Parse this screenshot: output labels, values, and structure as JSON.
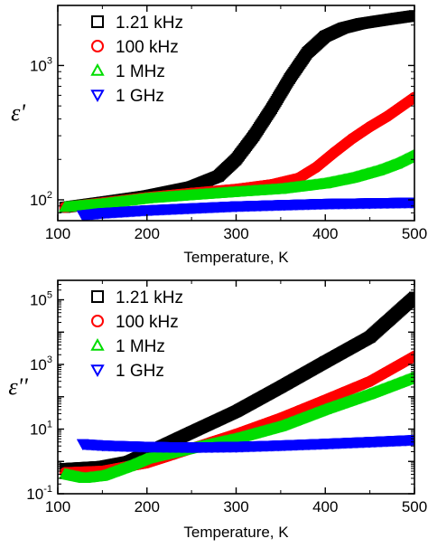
{
  "chart_data": [
    {
      "type": "scatter",
      "xlabel": "Temperature, K",
      "ylabel": "ε'",
      "xlim": [
        100,
        500
      ],
      "ylim": [
        70,
        2800
      ],
      "yscale": "log",
      "x_ticks": [
        100,
        200,
        300,
        400,
        500
      ],
      "y_ticks": [
        {
          "value": 100,
          "base": "10",
          "exp": "2"
        },
        {
          "value": 1000,
          "base": "10",
          "exp": "3"
        }
      ],
      "legend": "top-left",
      "series": [
        {
          "name": "1.21 kHz",
          "marker": "square",
          "color": "#000000",
          "x": [
            108,
            150,
            200,
            250,
            280,
            300,
            320,
            340,
            360,
            380,
            400,
            420,
            440,
            460,
            480,
            500
          ],
          "y": [
            88,
            96,
            107,
            125,
            150,
            200,
            300,
            480,
            800,
            1250,
            1650,
            1900,
            2050,
            2150,
            2250,
            2350
          ]
        },
        {
          "name": "100 kHz",
          "marker": "circle",
          "color": "#ff0000",
          "x": [
            108,
            150,
            200,
            250,
            300,
            340,
            370,
            390,
            410,
            430,
            450,
            470,
            500
          ],
          "y": [
            88,
            95,
            104,
            112,
            120,
            130,
            145,
            175,
            225,
            285,
            350,
            420,
            580
          ]
        },
        {
          "name": "1 MHz",
          "marker": "triangle-up",
          "color": "#00dd00",
          "x": [
            108,
            150,
            200,
            250,
            300,
            350,
            400,
            430,
            460,
            480,
            500
          ],
          "y": [
            88,
            93,
            102,
            108,
            114,
            120,
            132,
            145,
            165,
            185,
            215
          ]
        },
        {
          "name": "1 GHz",
          "marker": "triangle-down",
          "color": "#0000ff",
          "x": [
            128,
            150,
            200,
            250,
            300,
            350,
            400,
            450,
            500
          ],
          "y": [
            77,
            80,
            84,
            87,
            90,
            92,
            94,
            95,
            96
          ]
        }
      ]
    },
    {
      "type": "scatter",
      "xlabel": "Temperature, K",
      "ylabel": "ε''",
      "xlim": [
        100,
        500
      ],
      "ylim": [
        0.1,
        400000
      ],
      "yscale": "log",
      "x_ticks": [
        100,
        200,
        300,
        400,
        500
      ],
      "y_ticks": [
        {
          "value": 0.1,
          "base": "10",
          "exp": "-1"
        },
        {
          "value": 10,
          "base": "10",
          "exp": "1"
        },
        {
          "value": 1000,
          "base": "10",
          "exp": "3"
        },
        {
          "value": 100000,
          "base": "10",
          "exp": "5"
        }
      ],
      "legend": "top-left",
      "series": [
        {
          "name": "1.21 kHz",
          "marker": "square",
          "color": "#000000",
          "x": [
            108,
            150,
            180,
            200,
            250,
            300,
            350,
            400,
            450,
            500
          ],
          "y": [
            0.6,
            0.7,
            1.0,
            1.8,
            8,
            35,
            200,
            1200,
            7000,
            120000
          ]
        },
        {
          "name": "100 kHz",
          "marker": "circle",
          "color": "#ff0000",
          "x": [
            108,
            150,
            200,
            250,
            300,
            350,
            400,
            450,
            500
          ],
          "y": [
            0.45,
            0.5,
            0.9,
            2.5,
            7,
            22,
            80,
            300,
            1800
          ]
        },
        {
          "name": "1 MHz",
          "marker": "triangle-up",
          "color": "#00dd00",
          "x": [
            108,
            130,
            150,
            180,
            200,
            250,
            300,
            350,
            400,
            450,
            500
          ],
          "y": [
            0.4,
            0.3,
            0.35,
            0.7,
            1.2,
            2.5,
            5,
            12,
            40,
            120,
            400
          ]
        },
        {
          "name": "1 GHz",
          "marker": "triangle-down",
          "color": "#0000ff",
          "x": [
            128,
            150,
            200,
            250,
            300,
            350,
            400,
            450,
            500
          ],
          "y": [
            3.5,
            3.2,
            2.9,
            2.8,
            2.9,
            3.2,
            3.6,
            4.1,
            4.7
          ]
        }
      ]
    }
  ]
}
